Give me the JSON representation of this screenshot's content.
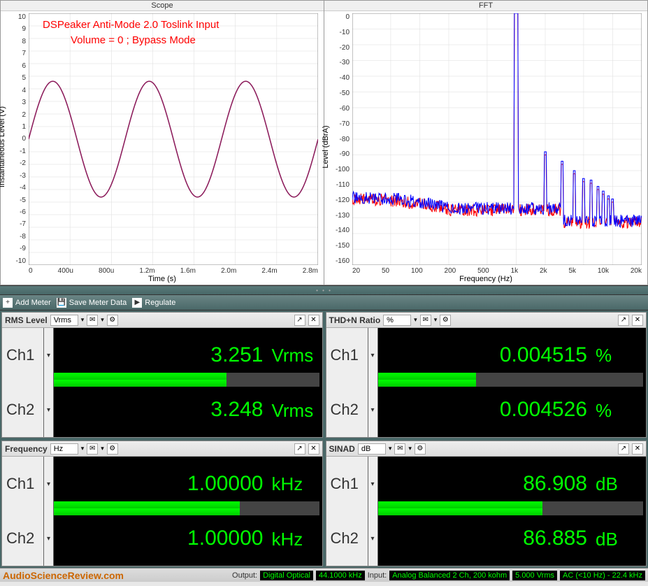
{
  "scope": {
    "title": "Scope",
    "xlabel": "Time (s)",
    "ylabel": "Instantaneous Level (V)",
    "xlim": [
      0,
      0.003
    ],
    "ylim": [
      -10,
      10
    ],
    "xticks": [
      "0",
      "400u",
      "800u",
      "1.2m",
      "1.6m",
      "2.0m",
      "2.4m",
      "2.8m"
    ],
    "yticks": [
      -10,
      -9,
      -8,
      -7,
      -6,
      -5,
      -4,
      -3,
      -2,
      -1,
      0,
      1,
      2,
      3,
      4,
      5,
      6,
      7,
      8,
      9,
      10
    ],
    "series_color": "#8b1a5a",
    "amplitude": 4.6,
    "freq_hz": 1000,
    "grid_color": "#dddddd",
    "bg": "#ffffff",
    "annotation1": "DSPeaker Anti-Mode 2.0 Toslink Input",
    "annotation2": "Volume = 0 ; Bypass Mode",
    "annotation_color": "#ff0000"
  },
  "fft": {
    "title": "FFT",
    "xlabel": "Frequency (Hz)",
    "ylabel": "Level (dBrA)",
    "xlim": [
      20,
      20000
    ],
    "ylim": [
      -160,
      0
    ],
    "xticks": [
      "20",
      "50",
      "100",
      "200",
      "500",
      "1k",
      "2k",
      "5k",
      "10k",
      "20k"
    ],
    "yticks": [
      0,
      -10,
      -20,
      -30,
      -40,
      -50,
      -60,
      -70,
      -80,
      -90,
      -100,
      -110,
      -120,
      -130,
      -140,
      -150,
      -160
    ],
    "xscale": "log",
    "colors": [
      "#ff0000",
      "#0000ff"
    ],
    "fundamental_hz": 1000,
    "fundamental_db": 0,
    "noise_floor_db": -125,
    "harmonics_db": [
      -90,
      -96,
      -102,
      -107,
      -108,
      -112,
      -115,
      -118,
      -120
    ],
    "grid_color": "#dddddd",
    "bg": "#ffffff"
  },
  "toolbar": {
    "add_meter": "Add Meter",
    "save_meter": "Save Meter Data",
    "regulate": "Regulate"
  },
  "meters": {
    "rms": {
      "name": "RMS Level",
      "unit_sel": "Vrms",
      "ch1_label": "Ch1",
      "ch1_value": "3.251",
      "ch1_unit": "Vrms",
      "ch1_bar": 0.65,
      "ch2_label": "Ch2",
      "ch2_value": "3.248",
      "ch2_unit": "Vrms",
      "ch2_bar": 0.65
    },
    "thdn": {
      "name": "THD+N Ratio",
      "unit_sel": "%",
      "ch1_label": "Ch1",
      "ch1_value": "0.004515",
      "ch1_unit": "%",
      "ch1_bar": 0.37,
      "ch2_label": "Ch2",
      "ch2_value": "0.004526",
      "ch2_unit": "%",
      "ch2_bar": 0.37
    },
    "freq": {
      "name": "Frequency",
      "unit_sel": "Hz",
      "ch1_label": "Ch1",
      "ch1_value": "1.00000",
      "ch1_unit": "kHz",
      "ch1_bar": 0.7,
      "ch2_label": "Ch2",
      "ch2_value": "1.00000",
      "ch2_unit": "kHz",
      "ch2_bar": 0.7
    },
    "sinad": {
      "name": "SINAD",
      "unit_sel": "dB",
      "ch1_label": "Ch1",
      "ch1_value": "86.908",
      "ch1_unit": "dB",
      "ch1_bar": 0.62,
      "ch2_label": "Ch2",
      "ch2_value": "86.885",
      "ch2_unit": "dB",
      "ch2_bar": 0.62
    }
  },
  "footer": {
    "brand": "AudioScienceReview.com",
    "output_label": "Output:",
    "output_type": "Digital Optical",
    "output_rate": "44.1000 kHz",
    "input_label": "Input:",
    "input_type": "Analog Balanced 2 Ch, 200 kohm",
    "input_level": "5.000 Vrms",
    "input_bw": "AC (<10 Hz) - 22.4 kHz"
  },
  "colors": {
    "meter_green": "#00ff00",
    "bg_dark": "#000000"
  }
}
